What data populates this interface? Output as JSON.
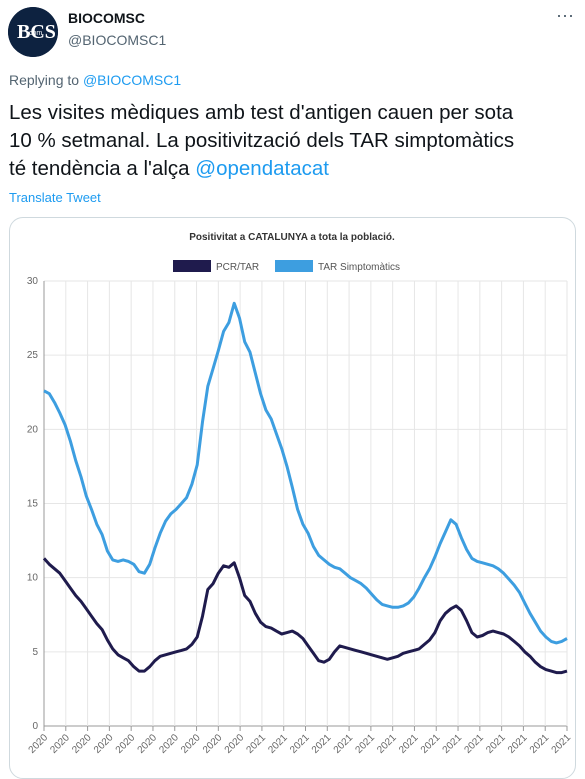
{
  "tweet": {
    "author_name": "BIOCOMSC",
    "author_handle": "@BIOCOMSC1",
    "avatar_text": "BCS",
    "avatar_subtext": "com",
    "reply_prefix": "Replying to",
    "reply_handle": "@BIOCOMSC1",
    "text_line1": "Les visites mèdiques amb test d'antigen cauen per sota",
    "text_line2": "10 % setmanal. La positivització dels TAR simptomàtics",
    "text_line3": "té tendència a l'alça",
    "mention": "@opendatacat",
    "translate_label": "Translate Tweet",
    "more_icon": "⋯"
  },
  "colors": {
    "pcr": "#1f1b4d",
    "tar": "#3d9ee0",
    "link": "#1d9bf0"
  },
  "chart_data": {
    "type": "line",
    "title": "Positivitat a CATALUNYA a tota la població.",
    "ylim": [
      0,
      30
    ],
    "yticks": [
      "0",
      "5",
      "10",
      "15",
      "20",
      "25",
      "30"
    ],
    "xtick_labels": [
      "2020",
      "2020",
      "2020",
      "2020",
      "2020",
      "2020",
      "2020",
      "2020",
      "2020",
      "2020",
      "2021",
      "2021",
      "2021",
      "2021",
      "2021",
      "2021",
      "2021",
      "2021",
      "2021",
      "2021",
      "2021",
      "2021",
      "2021",
      "2021",
      "2021"
    ],
    "grid": true,
    "legend_position": "top",
    "series": [
      {
        "name": "PCR/TAR",
        "color": "#1f1b4d",
        "values": [
          11.3,
          10.9,
          10.6,
          10.3,
          9.8,
          9.3,
          8.8,
          8.4,
          7.9,
          7.4,
          6.9,
          6.5,
          5.8,
          5.2,
          4.8,
          4.6,
          4.4,
          4.0,
          3.7,
          3.7,
          4.0,
          4.4,
          4.7,
          4.8,
          4.9,
          5.0,
          5.1,
          5.2,
          5.5,
          6.0,
          7.4,
          9.2,
          9.6,
          10.3,
          10.8,
          10.7,
          11.0,
          10.0,
          8.8,
          8.4,
          7.6,
          7.0,
          6.7,
          6.6,
          6.4,
          6.2,
          6.3,
          6.4,
          6.2,
          5.9,
          5.4,
          4.9,
          4.4,
          4.3,
          4.5,
          5.0,
          5.4,
          5.3,
          5.2,
          5.1,
          5.0,
          4.9,
          4.8,
          4.7,
          4.6,
          4.5,
          4.6,
          4.7,
          4.9,
          5.0,
          5.1,
          5.2,
          5.5,
          5.8,
          6.3,
          7.1,
          7.6,
          7.9,
          8.1,
          7.8,
          7.1,
          6.3,
          6.0,
          6.1,
          6.3,
          6.4,
          6.3,
          6.2,
          6.0,
          5.7,
          5.4,
          5.0,
          4.7,
          4.3,
          4.0,
          3.8,
          3.7,
          3.6,
          3.6,
          3.7
        ]
      },
      {
        "name": "TAR Simptomàtics",
        "color": "#3d9ee0",
        "values": [
          22.6,
          22.4,
          21.8,
          21.1,
          20.3,
          19.2,
          17.9,
          16.8,
          15.5,
          14.6,
          13.6,
          12.9,
          11.8,
          11.2,
          11.1,
          11.2,
          11.1,
          10.9,
          10.4,
          10.3,
          10.9,
          12.0,
          13.0,
          13.8,
          14.3,
          14.6,
          15.0,
          15.4,
          16.3,
          17.6,
          20.5,
          22.9,
          24.1,
          25.3,
          26.6,
          27.2,
          28.5,
          27.5,
          25.9,
          25.2,
          23.8,
          22.4,
          21.3,
          20.7,
          19.7,
          18.7,
          17.5,
          16.1,
          14.6,
          13.6,
          13.0,
          12.1,
          11.5,
          11.2,
          10.9,
          10.7,
          10.6,
          10.3,
          10.0,
          9.8,
          9.6,
          9.3,
          8.9,
          8.5,
          8.2,
          8.1,
          8.0,
          8.0,
          8.1,
          8.3,
          8.7,
          9.3,
          10.0,
          10.6,
          11.4,
          12.3,
          13.1,
          13.9,
          13.6,
          12.7,
          11.9,
          11.3,
          11.1,
          11.0,
          10.9,
          10.8,
          10.6,
          10.3,
          9.9,
          9.5,
          9.0,
          8.3,
          7.6,
          7.0,
          6.4,
          6.0,
          5.7,
          5.6,
          5.7,
          5.9
        ]
      }
    ]
  }
}
